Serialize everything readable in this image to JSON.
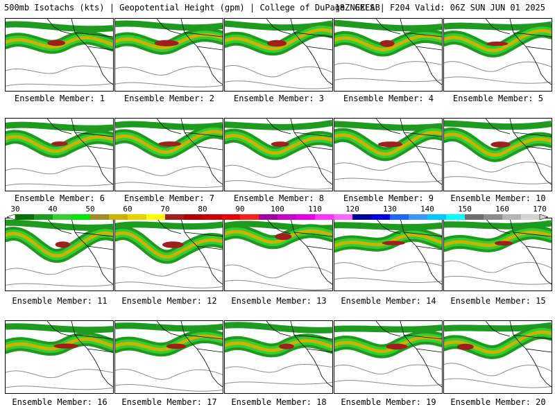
{
  "header": {
    "left": "500mb Isotachs (kts) | Geopotential Height (gpm) | College of DuPage NEXLAB",
    "right": "18Z GEFS | F204 Valid: 06Z SUN JUN 01 2025"
  },
  "colorbar": {
    "ticks": [
      "30",
      "40",
      "50",
      "60",
      "70",
      "80",
      "90",
      "100",
      "110",
      "120",
      "130",
      "140",
      "150",
      "160",
      "170"
    ],
    "colors": [
      "#0a6e0a",
      "#1e9b1e",
      "#32cd32",
      "#00e600",
      "#a08c28",
      "#c8b400",
      "#e6d200",
      "#ffff00",
      "#a01e1e",
      "#b40000",
      "#cd0000",
      "#e60000",
      "#ff1e1e",
      "#a000a0",
      "#c800c8",
      "#e600e6",
      "#ff32ff",
      "#ff64ff",
      "#0000a0",
      "#0000e6",
      "#1e64ff",
      "#3c96ff",
      "#00c8ff",
      "#00ffff",
      "#6e6e6e",
      "#8c8c8c",
      "#b4b4b4",
      "#d2d2d2"
    ]
  },
  "panels": [
    {
      "label": "Ensemble Member: 1"
    },
    {
      "label": "Ensemble Member: 2"
    },
    {
      "label": "Ensemble Member: 3"
    },
    {
      "label": "Ensemble Member: 4"
    },
    {
      "label": "Ensemble Member: 5"
    },
    {
      "label": "Ensemble Member: 6"
    },
    {
      "label": "Ensemble Member: 7"
    },
    {
      "label": "Ensemble Member: 8"
    },
    {
      "label": "Ensemble Member: 9"
    },
    {
      "label": "Ensemble Member: 10"
    },
    {
      "label": "Ensemble Member: 11"
    },
    {
      "label": "Ensemble Member: 12"
    },
    {
      "label": "Ensemble Member: 13"
    },
    {
      "label": "Ensemble Member: 14"
    },
    {
      "label": "Ensemble Member: 15"
    },
    {
      "label": "Ensemble Member: 16"
    },
    {
      "label": "Ensemble Member: 17"
    },
    {
      "label": "Ensemble Member: 18"
    },
    {
      "label": "Ensemble Member: 19"
    },
    {
      "label": "Ensemble Member: 20"
    }
  ]
}
